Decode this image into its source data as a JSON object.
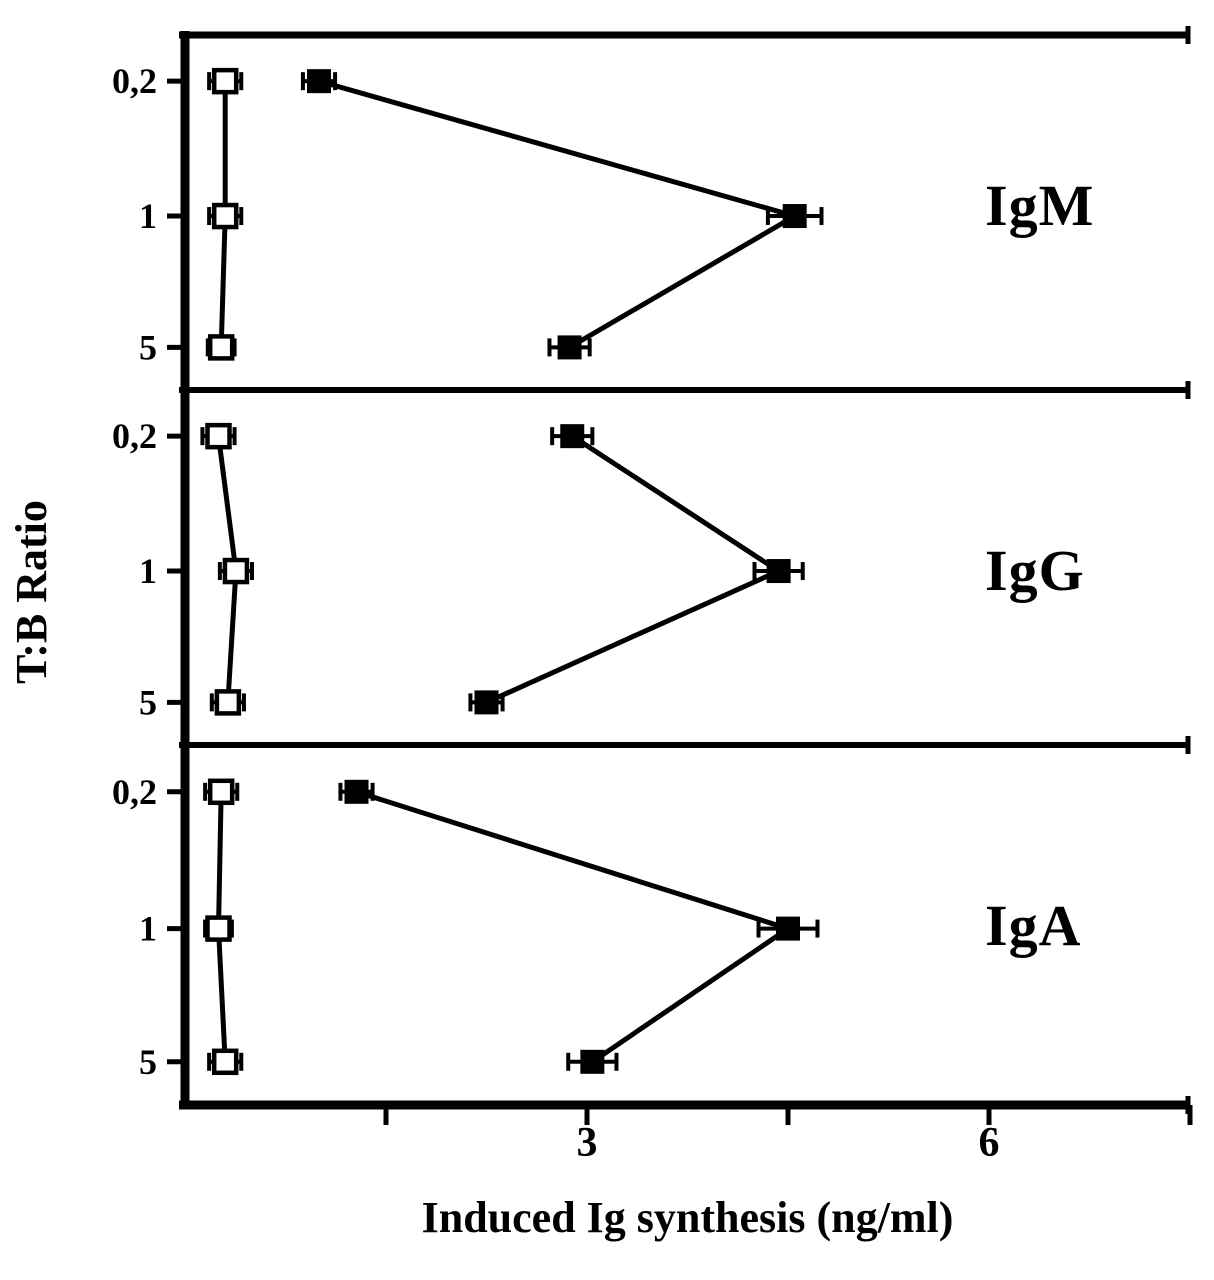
{
  "chart_data": {
    "type": "scatter-line",
    "title": "",
    "x_axis": {
      "label": "Induced Ig synthesis (ng/ml)",
      "range": [
        0,
        7.5
      ],
      "ticks": [
        1.5,
        3,
        4.5,
        6,
        7.5
      ],
      "labeled_ticks": [
        3,
        6
      ]
    },
    "y_axis": {
      "label": "T:B Ratio",
      "categories": [
        "0,2",
        "1",
        "5"
      ]
    },
    "layout_hints": {
      "panels_stacked": 3,
      "grid": false,
      "legend": "none",
      "marker_color": "#000000",
      "background": "#ffffff"
    },
    "panels": [
      {
        "label": "IgM",
        "series": [
          {
            "name": "open squares",
            "marker": "open-square",
            "values": [
              0.3,
              0.3,
              0.27
            ],
            "errors": [
              0.12,
              0.12,
              0.1
            ]
          },
          {
            "name": "filled squares",
            "marker": "filled-square",
            "values": [
              1.0,
              4.55,
              2.87
            ],
            "errors": [
              0.12,
              0.2,
              0.15
            ]
          }
        ]
      },
      {
        "label": "IgG",
        "series": [
          {
            "name": "open squares",
            "marker": "open-square",
            "values": [
              0.25,
              0.38,
              0.32
            ],
            "errors": [
              0.12,
              0.12,
              0.12
            ]
          },
          {
            "name": "filled squares",
            "marker": "filled-square",
            "values": [
              2.89,
              4.43,
              2.25
            ],
            "errors": [
              0.15,
              0.18,
              0.12
            ]
          }
        ]
      },
      {
        "label": "IgA",
        "series": [
          {
            "name": "open squares",
            "marker": "open-square",
            "values": [
              0.27,
              0.25,
              0.3
            ],
            "errors": [
              0.12,
              0.1,
              0.12
            ]
          },
          {
            "name": "filled squares",
            "marker": "filled-square",
            "values": [
              1.28,
              4.5,
              3.04
            ],
            "errors": [
              0.12,
              0.22,
              0.18
            ]
          }
        ]
      }
    ]
  }
}
